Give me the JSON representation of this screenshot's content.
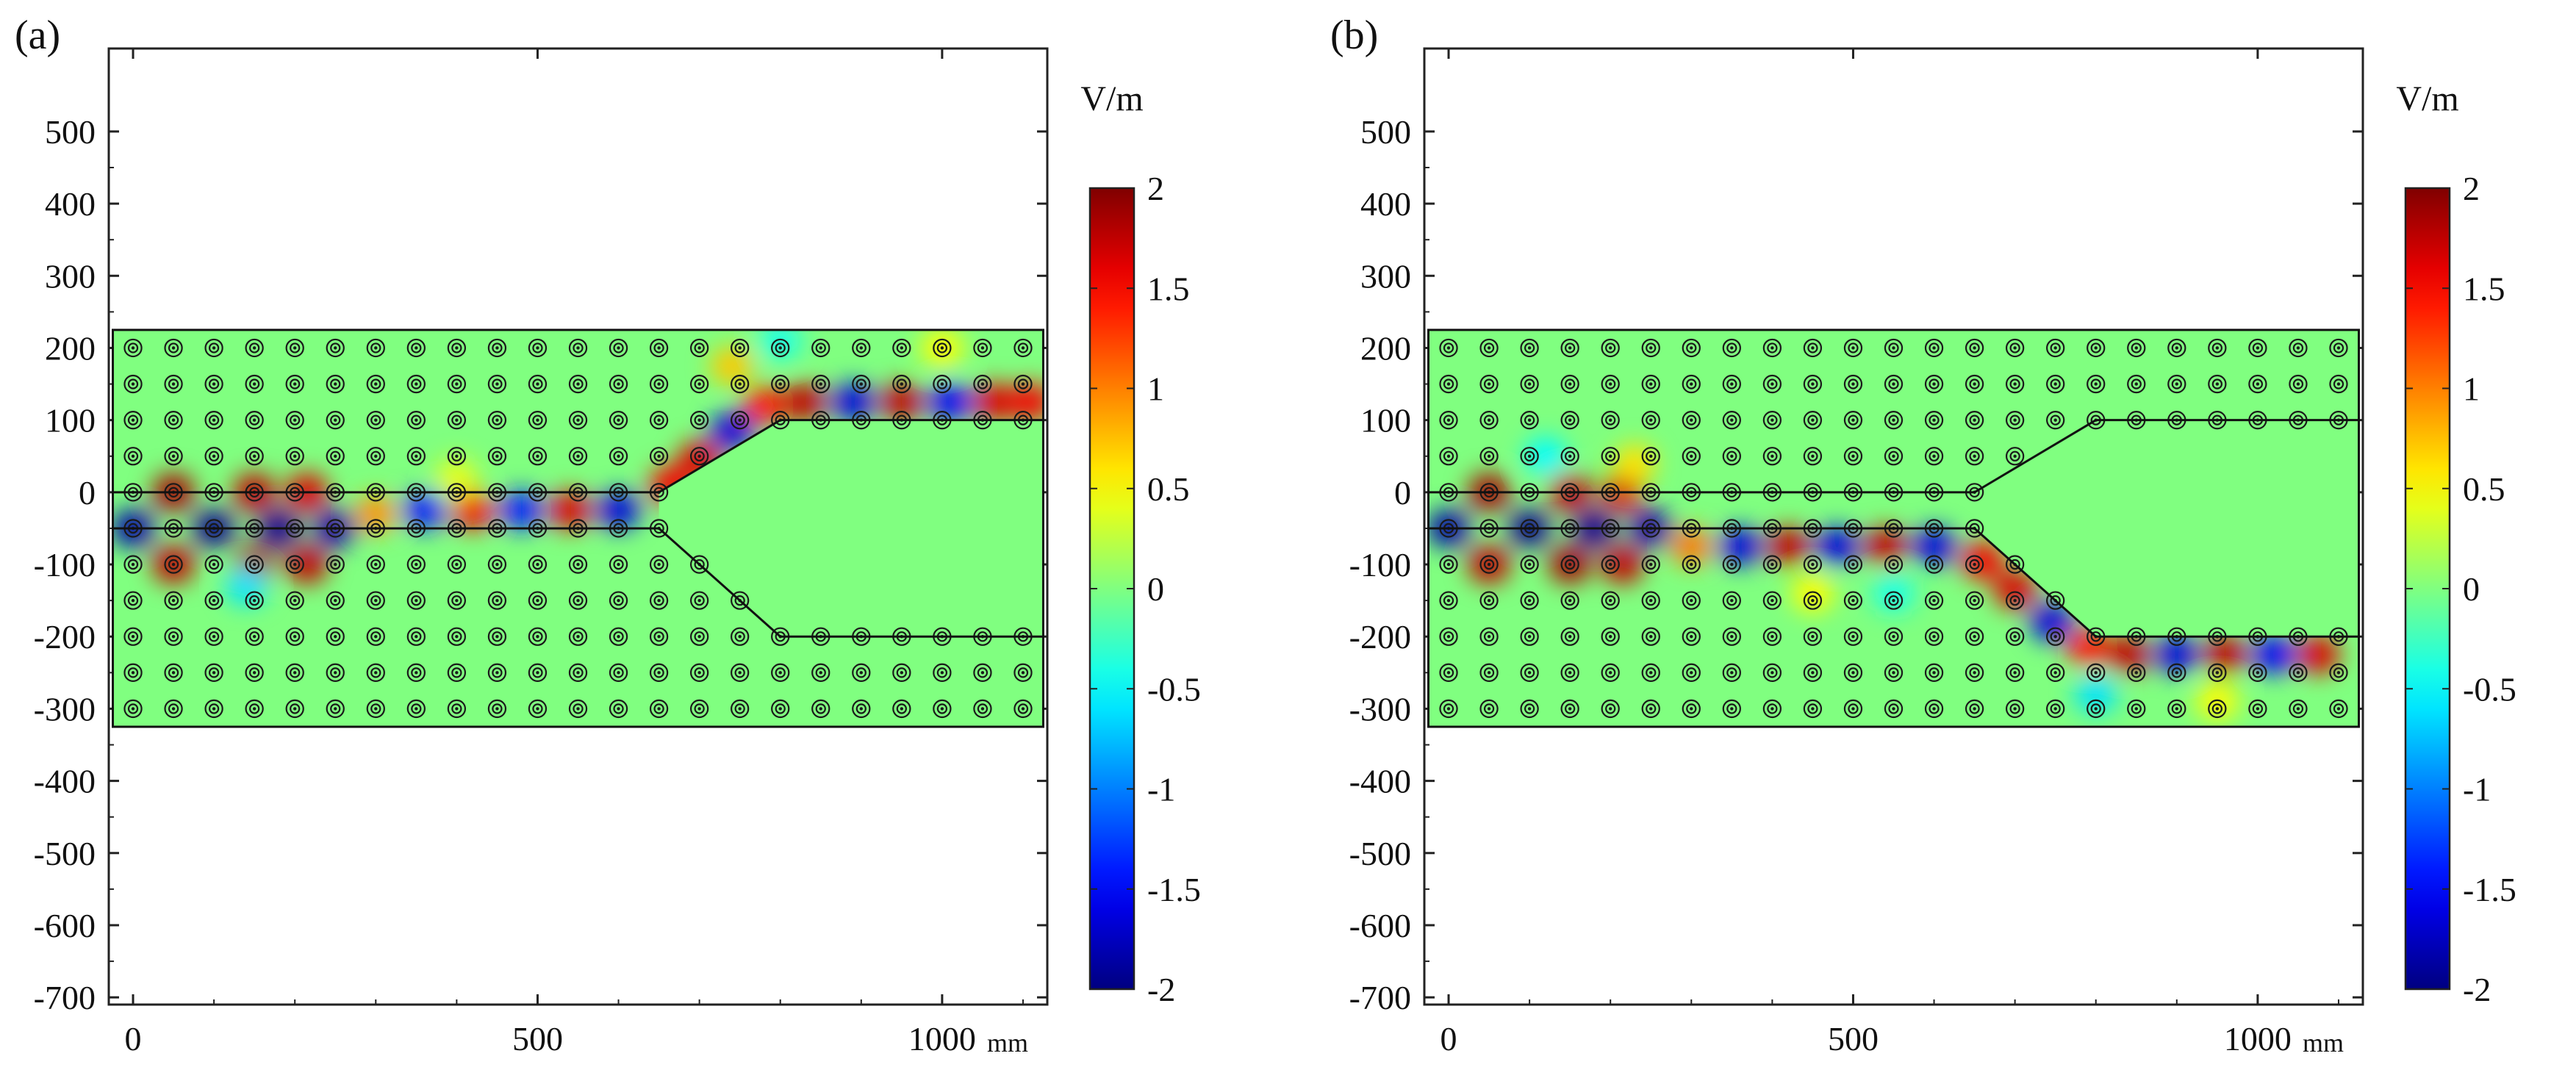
{
  "chart_data": [
    {
      "type": "heatmap",
      "panel_label": "(a)",
      "title": "",
      "xlabel": "",
      "ylabel": "",
      "x_unit": "mm",
      "xlim": [
        -30,
        1130
      ],
      "ylim": [
        -710,
        615
      ],
      "x_ticks": [
        0,
        500,
        1000
      ],
      "x_tick_labels": [
        "0",
        "500",
        "1000"
      ],
      "y_ticks": [
        500,
        400,
        300,
        200,
        100,
        0,
        -100,
        -200,
        -300,
        -400,
        -500,
        -600,
        -700
      ],
      "y_tick_labels": [
        "500",
        "400",
        "300",
        "200",
        "100",
        "0",
        "-100",
        "-200",
        "-300",
        "-400",
        "-500",
        "-600",
        "-700"
      ],
      "domain": {
        "x": [
          -25,
          1125
        ],
        "y": [
          -325,
          225
        ]
      },
      "rod_lattice": {
        "x_start": 0,
        "x_step": 50,
        "x_count": 23,
        "y_start": -300,
        "y_step": 50,
        "y_count": 11
      },
      "channel_polygon": [
        [
          -25,
          0
        ],
        [
          650,
          0
        ],
        [
          800,
          100
        ],
        [
          1125,
          100
        ],
        [
          1125,
          -200
        ],
        [
          800,
          -200
        ],
        [
          650,
          -50
        ],
        [
          -25,
          -50
        ]
      ],
      "waveguide_path": "left input channel bending upward into upper output channel",
      "field_hotspots": [
        {
          "x": 0,
          "y": -50,
          "value": -1.8
        },
        {
          "x": 50,
          "y": 0,
          "value": 1.8
        },
        {
          "x": 50,
          "y": -100,
          "value": 1.7
        },
        {
          "x": 100,
          "y": -50,
          "value": -1.9
        },
        {
          "x": 150,
          "y": 0,
          "value": 1.7
        },
        {
          "x": 150,
          "y": -100,
          "value": 1.8
        },
        {
          "x": 180,
          "y": -50,
          "value": -1.9
        },
        {
          "x": 215,
          "y": 0,
          "value": 1.6
        },
        {
          "x": 215,
          "y": -100,
          "value": 1.7
        },
        {
          "x": 250,
          "y": -50,
          "value": -1.8
        },
        {
          "x": 140,
          "y": -130,
          "value": -0.6
        },
        {
          "x": 300,
          "y": -30,
          "value": 0.9
        },
        {
          "x": 360,
          "y": -25,
          "value": -1.4
        },
        {
          "x": 420,
          "y": -25,
          "value": 1.5
        },
        {
          "x": 480,
          "y": -25,
          "value": -1.4
        },
        {
          "x": 540,
          "y": -25,
          "value": 1.6
        },
        {
          "x": 600,
          "y": -25,
          "value": -1.6
        },
        {
          "x": 665,
          "y": 10,
          "value": 1.5
        },
        {
          "x": 700,
          "y": 45,
          "value": 1.6
        },
        {
          "x": 740,
          "y": 85,
          "value": -1.6
        },
        {
          "x": 780,
          "y": 120,
          "value": 1.4
        },
        {
          "x": 830,
          "y": 125,
          "value": 1.7
        },
        {
          "x": 890,
          "y": 125,
          "value": -1.6
        },
        {
          "x": 950,
          "y": 125,
          "value": 1.7
        },
        {
          "x": 1010,
          "y": 125,
          "value": -1.5
        },
        {
          "x": 1065,
          "y": 125,
          "value": 1.6
        },
        {
          "x": 1110,
          "y": 125,
          "value": 1.5
        },
        {
          "x": 740,
          "y": 175,
          "value": 0.7
        },
        {
          "x": 1000,
          "y": 200,
          "value": 0.5
        },
        {
          "x": 800,
          "y": 210,
          "value": -0.4
        },
        {
          "x": 400,
          "y": 20,
          "value": 0.4
        }
      ],
      "colorbar": {
        "label": "V/m",
        "vmin": -2,
        "vmax": 2,
        "colormap": "jet",
        "ticks": [
          2,
          1.5,
          1,
          0.5,
          0,
          -0.5,
          -1,
          -1.5,
          -2
        ],
        "tick_labels": [
          "2",
          "1.5",
          "1",
          "0.5",
          "0",
          "-0.5",
          "-1",
          "-1.5",
          "-2"
        ]
      }
    },
    {
      "type": "heatmap",
      "panel_label": "(b)",
      "title": "",
      "xlabel": "",
      "ylabel": "",
      "x_unit": "mm",
      "xlim": [
        -30,
        1130
      ],
      "ylim": [
        -710,
        615
      ],
      "x_ticks": [
        0,
        500,
        1000
      ],
      "x_tick_labels": [
        "0",
        "500",
        "1000"
      ],
      "y_ticks": [
        500,
        400,
        300,
        200,
        100,
        0,
        -100,
        -200,
        -300,
        -400,
        -500,
        -600,
        -700
      ],
      "y_tick_labels": [
        "500",
        "400",
        "300",
        "200",
        "100",
        "0",
        "-100",
        "-200",
        "-300",
        "-400",
        "-500",
        "-600",
        "-700"
      ],
      "domain": {
        "x": [
          -25,
          1125
        ],
        "y": [
          -325,
          225
        ]
      },
      "rod_lattice": {
        "x_start": 0,
        "x_step": 50,
        "x_count": 23,
        "y_start": -300,
        "y_step": 50,
        "y_count": 11
      },
      "channel_polygon": [
        [
          -25,
          0
        ],
        [
          650,
          0
        ],
        [
          800,
          100
        ],
        [
          1125,
          100
        ],
        [
          1125,
          -200
        ],
        [
          800,
          -200
        ],
        [
          650,
          -50
        ],
        [
          -25,
          -50
        ]
      ],
      "waveguide_path": "left input channel bending downward into lower output channel",
      "field_hotspots": [
        {
          "x": 0,
          "y": -50,
          "value": -1.8
        },
        {
          "x": 50,
          "y": 0,
          "value": 1.8
        },
        {
          "x": 50,
          "y": -100,
          "value": 1.7
        },
        {
          "x": 100,
          "y": -50,
          "value": -1.9
        },
        {
          "x": 150,
          "y": 0,
          "value": 1.7
        },
        {
          "x": 150,
          "y": -100,
          "value": 1.8
        },
        {
          "x": 180,
          "y": -50,
          "value": -1.9
        },
        {
          "x": 215,
          "y": 0,
          "value": 1.6
        },
        {
          "x": 215,
          "y": -100,
          "value": 1.7
        },
        {
          "x": 250,
          "y": -50,
          "value": -1.8
        },
        {
          "x": 120,
          "y": 50,
          "value": -0.5
        },
        {
          "x": 230,
          "y": 40,
          "value": 0.6
        },
        {
          "x": 300,
          "y": -75,
          "value": 1.0
        },
        {
          "x": 360,
          "y": -75,
          "value": -1.6
        },
        {
          "x": 420,
          "y": -75,
          "value": 1.7
        },
        {
          "x": 480,
          "y": -75,
          "value": -1.6
        },
        {
          "x": 540,
          "y": -75,
          "value": 1.7
        },
        {
          "x": 600,
          "y": -75,
          "value": -1.6
        },
        {
          "x": 660,
          "y": -95,
          "value": 1.5
        },
        {
          "x": 700,
          "y": -135,
          "value": 1.6
        },
        {
          "x": 745,
          "y": -180,
          "value": -1.6
        },
        {
          "x": 790,
          "y": -215,
          "value": 1.4
        },
        {
          "x": 840,
          "y": -225,
          "value": 1.7
        },
        {
          "x": 900,
          "y": -225,
          "value": -1.6
        },
        {
          "x": 960,
          "y": -225,
          "value": 1.7
        },
        {
          "x": 1020,
          "y": -225,
          "value": -1.5
        },
        {
          "x": 1075,
          "y": -225,
          "value": 1.6
        },
        {
          "x": 800,
          "y": -280,
          "value": -0.6
        },
        {
          "x": 950,
          "y": -290,
          "value": 0.5
        },
        {
          "x": 450,
          "y": -140,
          "value": 0.5
        },
        {
          "x": 550,
          "y": -140,
          "value": -0.4
        }
      ],
      "colorbar": {
        "label": "V/m",
        "vmin": -2,
        "vmax": 2,
        "colormap": "jet",
        "ticks": [
          2,
          1.5,
          1,
          0.5,
          0,
          -0.5,
          -1,
          -1.5,
          -2
        ],
        "tick_labels": [
          "2",
          "1.5",
          "1",
          "0.5",
          "0",
          "-0.5",
          "-1",
          "-1.5",
          "-2"
        ]
      }
    }
  ]
}
